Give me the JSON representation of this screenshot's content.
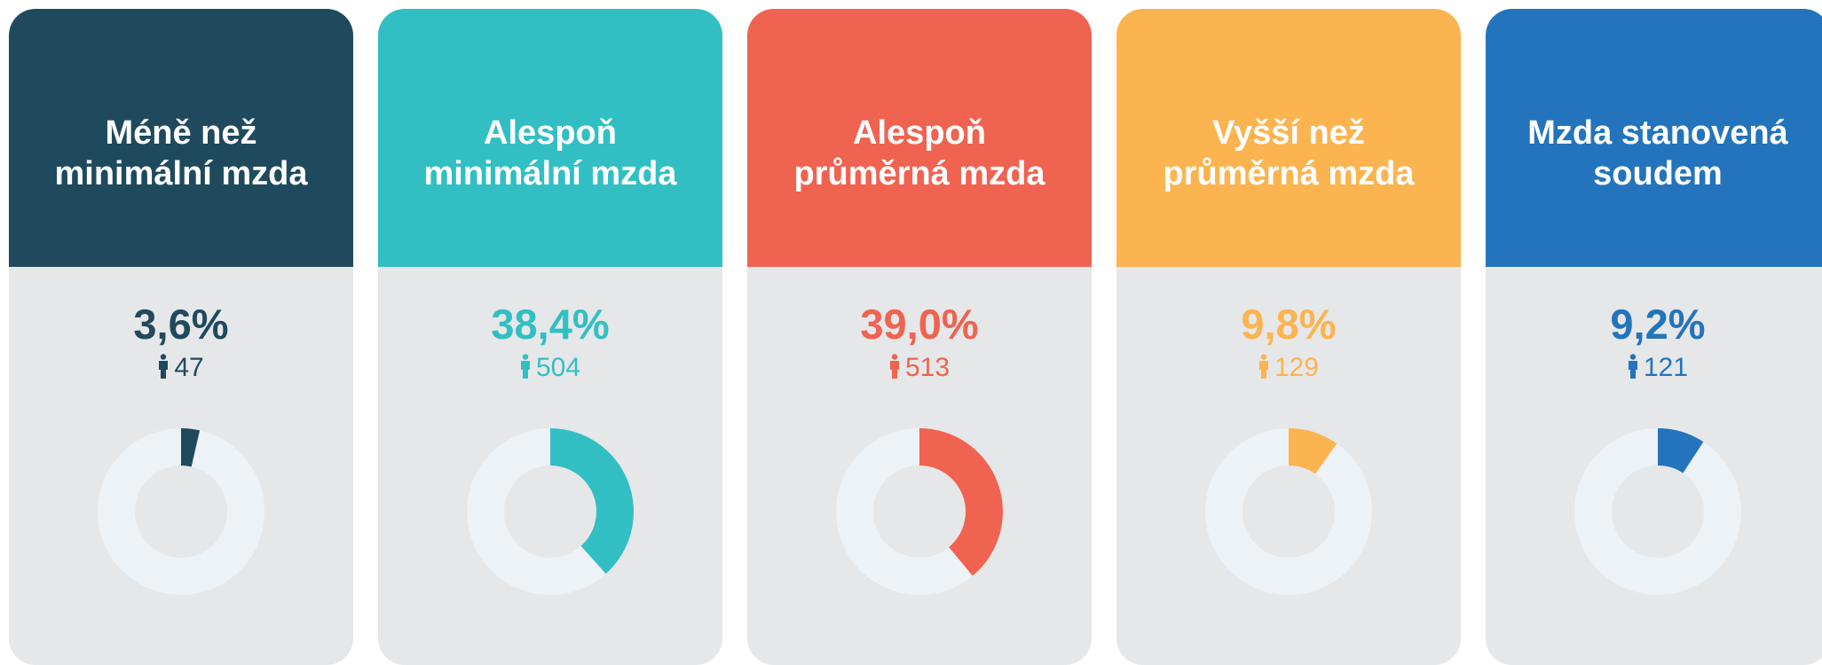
{
  "chart_data": [
    {
      "type": "donut",
      "title": [
        "Méně než",
        "minimální mzda"
      ],
      "values": [
        3.6
      ],
      "value_labels": [
        "3,6%"
      ],
      "count": 47,
      "color": "#1f4a5e"
    },
    {
      "type": "donut",
      "title": [
        "Alespoň",
        "minimální mzda"
      ],
      "values": [
        38.4
      ],
      "value_labels": [
        "38,4%"
      ],
      "count": 504,
      "color": "#32bfc3"
    },
    {
      "type": "donut",
      "title": [
        "Alespoň",
        "průměrná mzda"
      ],
      "values": [
        39.0
      ],
      "value_labels": [
        "39,0%"
      ],
      "count": 513,
      "color": "#f06351"
    },
    {
      "type": "donut",
      "title": [
        "Vyšší než",
        "průměrná mzda"
      ],
      "values": [
        9.8
      ],
      "value_labels": [
        "9,8%"
      ],
      "count": 129,
      "color": "#fbb450"
    },
    {
      "type": "donut",
      "title": [
        "Mzda stanovená",
        "soudem"
      ],
      "values": [
        9.2
      ],
      "value_labels": [
        "9,2%"
      ],
      "count": 121,
      "color": "#2374bc"
    }
  ]
}
